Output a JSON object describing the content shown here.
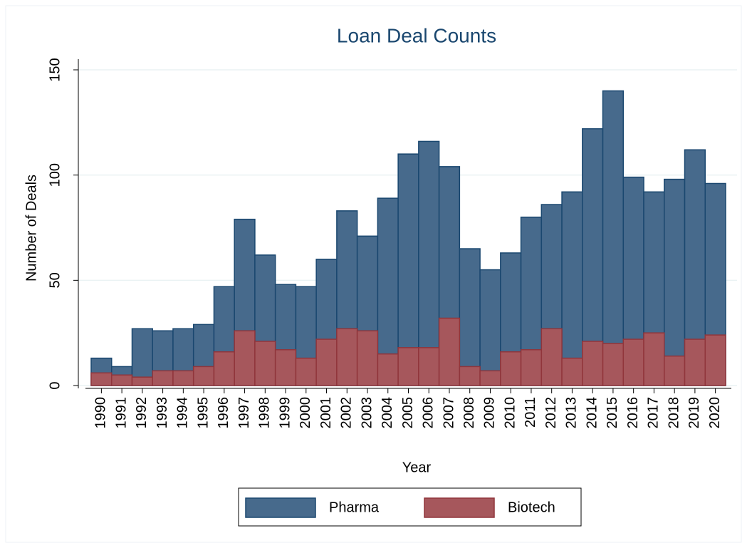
{
  "chart_data": {
    "type": "bar",
    "title": "Loan Deal Counts",
    "x_label": "Year",
    "y_label": "Number of Deals",
    "categories": [
      "1990",
      "1991",
      "1992",
      "1993",
      "1994",
      "1995",
      "1996",
      "1997",
      "1998",
      "1999",
      "2000",
      "2001",
      "2002",
      "2003",
      "2004",
      "2005",
      "2006",
      "2007",
      "2008",
      "2009",
      "2010",
      "2011",
      "2012",
      "2013",
      "2014",
      "2015",
      "2016",
      "2017",
      "2018",
      "2019",
      "2020"
    ],
    "series": [
      {
        "name": "Pharma",
        "color": "#476a8c",
        "values": [
          13,
          9,
          27,
          26,
          27,
          29,
          47,
          79,
          62,
          48,
          47,
          60,
          83,
          71,
          89,
          110,
          116,
          104,
          65,
          55,
          63,
          80,
          86,
          92,
          122,
          140,
          99,
          92,
          98,
          112,
          96
        ]
      },
      {
        "name": "Biotech",
        "color": "#a6575c",
        "values": [
          6,
          5,
          4,
          7,
          7,
          9,
          16,
          26,
          21,
          17,
          13,
          22,
          27,
          26,
          15,
          18,
          18,
          32,
          9,
          7,
          16,
          17,
          27,
          13,
          21,
          20,
          22,
          25,
          14,
          22,
          24
        ]
      }
    ],
    "ylim": [
      0,
      150
    ],
    "yticks": [
      0,
      50,
      100,
      150
    ],
    "grid": true,
    "legend": "bottom"
  }
}
